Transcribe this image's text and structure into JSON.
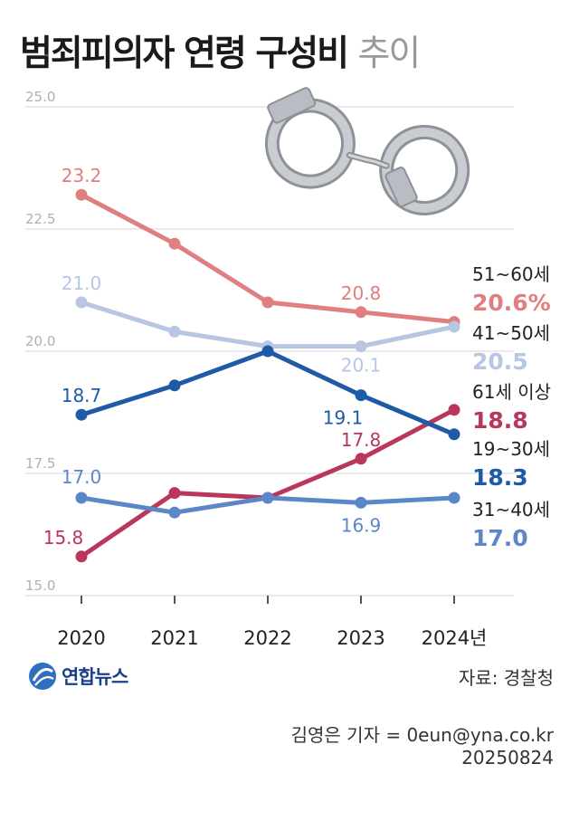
{
  "title": {
    "main": "범죄피의자 연령 구성비",
    "sub": "추이"
  },
  "source": "자료: 경찰청",
  "credit": {
    "author": "김영은 기자 = 0eun@yna.co.kr",
    "date": "20250824"
  },
  "logo": {
    "text": "연합뉴스"
  },
  "chart_data": {
    "type": "line",
    "x": [
      "2020",
      "2021",
      "2022",
      "2023",
      "2024년"
    ],
    "ylim": [
      15.0,
      25.0
    ],
    "yticks": [
      "15.0",
      "17.5",
      "20.0",
      "22.5",
      "25.0"
    ],
    "grid": true,
    "series": [
      {
        "name": "51~60세",
        "color": "#e07f7f",
        "values": [
          23.2,
          22.2,
          21.0,
          20.8,
          20.6
        ],
        "labels": [
          {
            "i": 0,
            "text": "23.2"
          },
          {
            "i": 3,
            "text": "20.8"
          }
        ],
        "end_label": "20.6%"
      },
      {
        "name": "41~50세",
        "color": "#b7c6e2",
        "values": [
          21.0,
          20.4,
          20.1,
          20.1,
          20.5
        ],
        "labels": [
          {
            "i": 0,
            "text": "21.0"
          },
          {
            "i": 3,
            "text": "20.1"
          }
        ],
        "end_label": "20.5"
      },
      {
        "name": "61세 이상",
        "color": "#b8375a",
        "values": [
          15.8,
          17.1,
          17.0,
          17.8,
          18.8
        ],
        "labels": [
          {
            "i": 0,
            "text": "15.8"
          },
          {
            "i": 3,
            "text": "17.8"
          }
        ],
        "end_label": "18.8"
      },
      {
        "name": "19~30세",
        "color": "#1f5aa6",
        "values": [
          18.7,
          19.3,
          20.0,
          19.1,
          18.3
        ],
        "labels": [
          {
            "i": 0,
            "text": "18.7"
          },
          {
            "i": 3,
            "text": "19.1"
          }
        ],
        "end_label": "18.3"
      },
      {
        "name": "31~40세",
        "color": "#5b86c8",
        "values": [
          17.0,
          16.7,
          17.0,
          16.9,
          17.0
        ],
        "labels": [
          {
            "i": 0,
            "text": "17.0"
          },
          {
            "i": 3,
            "text": "16.9"
          }
        ],
        "end_label": "17.0"
      }
    ]
  }
}
